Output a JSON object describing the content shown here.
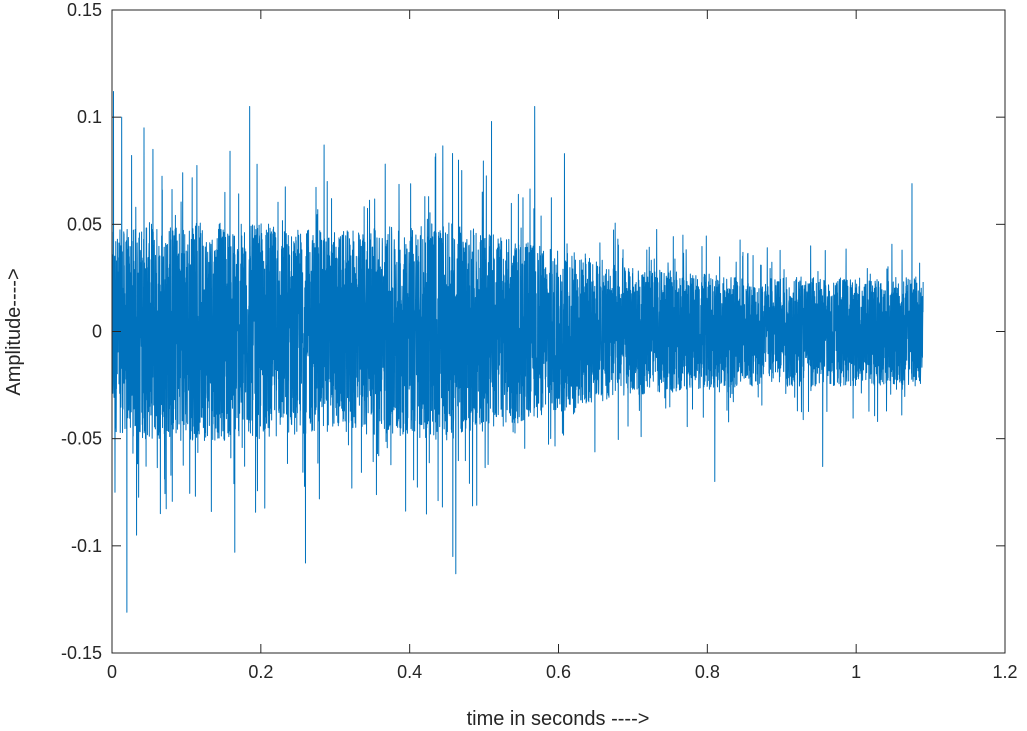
{
  "chart_data": {
    "type": "line",
    "title": "",
    "xlabel": "time in seconds ---->",
    "ylabel": "Amplitude---->",
    "xlim": [
      0,
      1.2
    ],
    "ylim": [
      -0.15,
      0.15
    ],
    "xticks": [
      0,
      0.2,
      0.4,
      0.6,
      0.8,
      1,
      1.2
    ],
    "xtick_labels": [
      "0",
      "0.2",
      "0.4",
      "0.6",
      "0.8",
      "1",
      "1.2"
    ],
    "yticks": [
      -0.15,
      -0.1,
      -0.05,
      0,
      0.05,
      0.1,
      0.15
    ],
    "ytick_labels": [
      "-0.15",
      "-0.1",
      "-0.05",
      "0",
      "0.05",
      "0.1",
      "0.15"
    ],
    "grid": false,
    "box": true,
    "series": [
      {
        "color": "#0072BD",
        "x_start": 0,
        "x_end": 1.09,
        "envelope": [
          {
            "t": 0.0,
            "amp": 0.055
          },
          {
            "t": 0.05,
            "amp": 0.06
          },
          {
            "t": 0.15,
            "amp": 0.06
          },
          {
            "t": 0.3,
            "amp": 0.055
          },
          {
            "t": 0.45,
            "amp": 0.06
          },
          {
            "t": 0.6,
            "amp": 0.045
          },
          {
            "t": 0.7,
            "amp": 0.035
          },
          {
            "t": 0.85,
            "amp": 0.03
          },
          {
            "t": 1.0,
            "amp": 0.03
          },
          {
            "t": 1.09,
            "amp": 0.03
          }
        ],
        "peaks": [
          {
            "x": 0.002,
            "y": 0.112
          },
          {
            "x": 0.004,
            "y": -0.075
          },
          {
            "x": 0.013,
            "y": 0.1
          },
          {
            "x": 0.02,
            "y": -0.131
          },
          {
            "x": 0.033,
            "y": -0.095
          },
          {
            "x": 0.043,
            "y": 0.095
          },
          {
            "x": 0.055,
            "y": 0.085
          },
          {
            "x": 0.065,
            "y": -0.085
          },
          {
            "x": 0.165,
            "y": -0.103
          },
          {
            "x": 0.185,
            "y": 0.105
          },
          {
            "x": 0.26,
            "y": -0.108
          },
          {
            "x": 0.285,
            "y": 0.087
          },
          {
            "x": 0.435,
            "y": 0.083
          },
          {
            "x": 0.458,
            "y": -0.105
          },
          {
            "x": 0.462,
            "y": -0.113
          },
          {
            "x": 0.51,
            "y": 0.098
          },
          {
            "x": 0.568,
            "y": 0.105
          },
          {
            "x": 0.608,
            "y": 0.083
          },
          {
            "x": 0.81,
            "y": -0.07
          },
          {
            "x": 0.955,
            "y": -0.063
          },
          {
            "x": 1.075,
            "y": 0.069
          }
        ]
      }
    ]
  }
}
